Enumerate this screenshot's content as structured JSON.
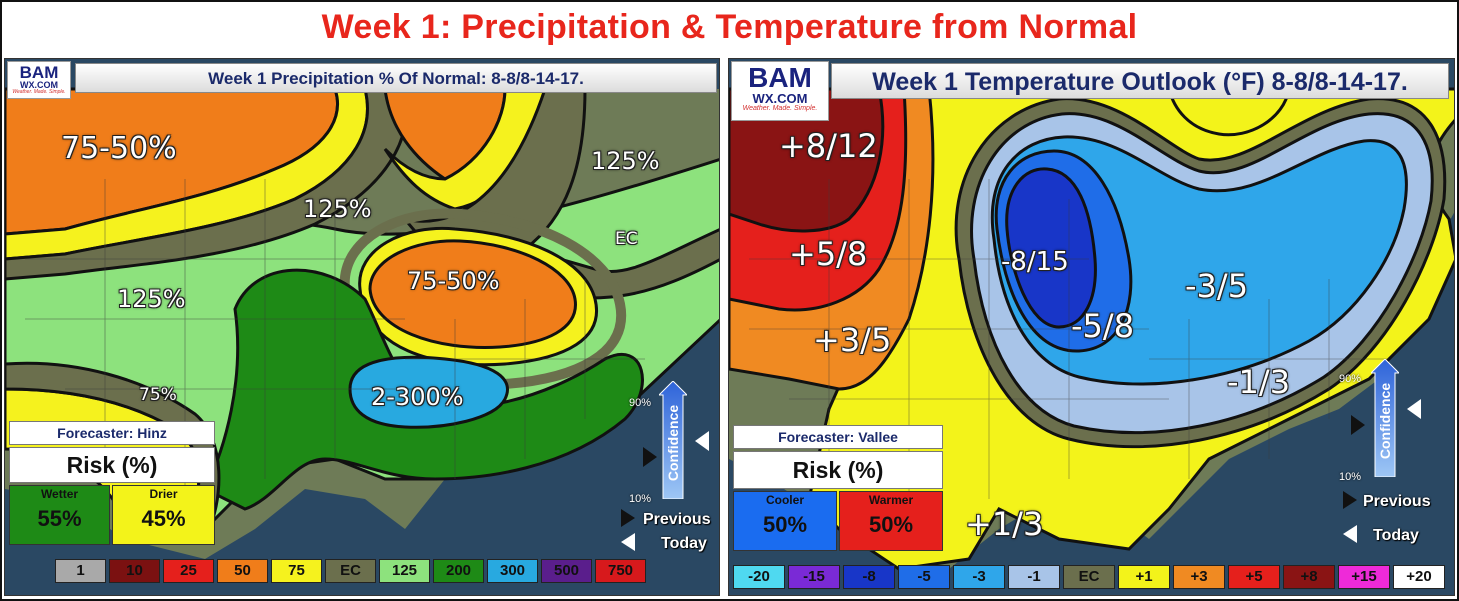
{
  "header": {
    "title": "Week 1: Precipitation & Temperature from Normal"
  },
  "colors": {
    "title": "#e8261c",
    "ocean": "#2b4a66",
    "land": "#6d7a58"
  },
  "left": {
    "logo": {
      "brand": "BAM",
      "site": "WX.COM",
      "tagline": "Weather. Made. Simple."
    },
    "title": "Week 1 Precipitation % Of Normal: 8-8/8-14-17.",
    "map_labels": [
      {
        "text": "75-50%"
      },
      {
        "text": "125%"
      },
      {
        "text": "125%"
      },
      {
        "text": "EC"
      },
      {
        "text": "125%"
      },
      {
        "text": "75-50%"
      },
      {
        "text": "75%"
      },
      {
        "text": "2-300%"
      }
    ],
    "forecaster": "Forecaster: Hinz",
    "risk_label": "Risk (%)",
    "risk": [
      {
        "label": "Wetter",
        "value": "55%",
        "color": "#1e8a16"
      },
      {
        "label": "Drier",
        "value": "45%",
        "color": "#f3f31a"
      }
    ],
    "confidence": {
      "label": "Confidence",
      "high": "90%",
      "low": "10%",
      "previous": "Previous",
      "today": "Today"
    },
    "legend": [
      {
        "label": "1",
        "color": "#a9a9a9",
        "text_color": "#111"
      },
      {
        "label": "10",
        "color": "#7b1111",
        "text_color": "#111"
      },
      {
        "label": "25",
        "color": "#e5201c",
        "text_color": "#111"
      },
      {
        "label": "50",
        "color": "#f07d1a",
        "text_color": "#111"
      },
      {
        "label": "75",
        "color": "#f5f21e",
        "text_color": "#111"
      },
      {
        "label": "EC",
        "color": "#6b6f4d",
        "text_color": "#111"
      },
      {
        "label": "125",
        "color": "#8de27d",
        "text_color": "#111"
      },
      {
        "label": "200",
        "color": "#1e8a16",
        "text_color": "#111"
      },
      {
        "label": "300",
        "color": "#28a9e0",
        "text_color": "#111"
      },
      {
        "label": "500",
        "color": "#5a1e8c",
        "text_color": "#111"
      },
      {
        "label": "750",
        "color": "#d7191c",
        "text_color": "#111"
      }
    ]
  },
  "right": {
    "logo": {
      "brand": "BAM",
      "site": "WX.COM",
      "tagline": "Weather. Made. Simple."
    },
    "title": "Week 1 Temperature Outlook (°F) 8-8/8-14-17.",
    "map_labels": [
      {
        "text": "+8/12"
      },
      {
        "text": "+5/8"
      },
      {
        "text": "+3/5"
      },
      {
        "text": "-8/15"
      },
      {
        "text": "-5/8"
      },
      {
        "text": "-3/5"
      },
      {
        "text": "-1/3"
      },
      {
        "text": "+1/3"
      }
    ],
    "forecaster": "Forecaster: Vallee",
    "risk_label": "Risk (%)",
    "risk": [
      {
        "label": "Cooler",
        "value": "50%",
        "color": "#1a6cf0"
      },
      {
        "label": "Warmer",
        "value": "50%",
        "color": "#e5201c"
      }
    ],
    "confidence": {
      "label": "Confidence",
      "high": "90%",
      "low": "10%",
      "previous": "Previous",
      "today": "Today"
    },
    "legend": [
      {
        "label": "-20",
        "color": "#4fd9f0",
        "text_color": "#111"
      },
      {
        "label": "-15",
        "color": "#7a2ad6",
        "text_color": "#111"
      },
      {
        "label": "-8",
        "color": "#1836c8",
        "text_color": "#111"
      },
      {
        "label": "-5",
        "color": "#1f6de8",
        "text_color": "#111"
      },
      {
        "label": "-3",
        "color": "#2fa6ea",
        "text_color": "#111"
      },
      {
        "label": "-1",
        "color": "#a8c4e8",
        "text_color": "#111"
      },
      {
        "label": "EC",
        "color": "#6b6f4d",
        "text_color": "#111"
      },
      {
        "label": "+1",
        "color": "#f3f31a",
        "text_color": "#111"
      },
      {
        "label": "+3",
        "color": "#f08a22",
        "text_color": "#111"
      },
      {
        "label": "+5",
        "color": "#e5201c",
        "text_color": "#111"
      },
      {
        "label": "+8",
        "color": "#8a1414",
        "text_color": "#111"
      },
      {
        "label": "+15",
        "color": "#ee2ad8",
        "text_color": "#111"
      },
      {
        "label": "+20",
        "color": "#ffffff",
        "text_color": "#111"
      }
    ]
  }
}
